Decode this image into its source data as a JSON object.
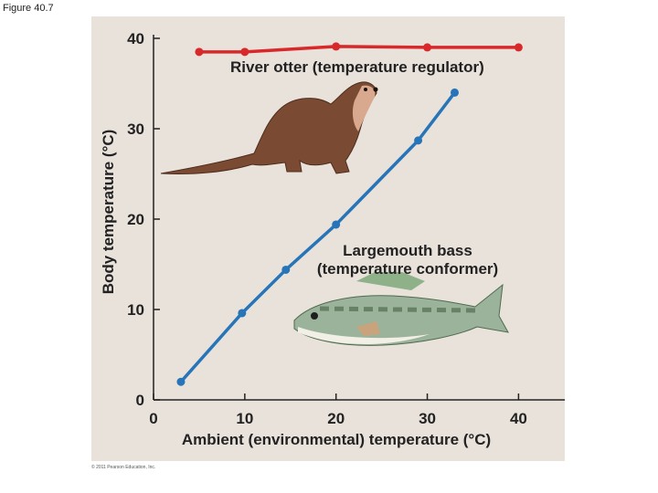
{
  "figure_label": "Figure 40.7",
  "copyright": "© 2011 Pearson Education, Inc.",
  "colors": {
    "background": "#e9e2db",
    "otter_series": "#d8282a",
    "bass_series": "#2775b8",
    "axis": "#222222"
  },
  "chart_data": {
    "type": "line",
    "title": "",
    "xlabel": "Ambient (environmental) temperature (°C)",
    "ylabel": "Body temperature (°C)",
    "xlim": [
      0,
      45
    ],
    "ylim": [
      0,
      40
    ],
    "xticks": [
      0,
      10,
      20,
      30,
      40
    ],
    "yticks": [
      0,
      10,
      20,
      30,
      40
    ],
    "grid": false,
    "series": [
      {
        "name": "River otter (temperature regulator)",
        "label_lines": [
          "River otter (temperature regulator)"
        ],
        "color": "#d8282a",
        "x": [
          5,
          10,
          20,
          30,
          40
        ],
        "y": [
          38.5,
          38.5,
          39.1,
          39.0,
          39.0
        ]
      },
      {
        "name": "Largemouth bass (temperature conformer)",
        "label_lines": [
          "Largemouth bass",
          "(temperature conformer)"
        ],
        "color": "#2775b8",
        "x": [
          3,
          9.7,
          14.5,
          20,
          29,
          33
        ],
        "y": [
          2,
          9.6,
          14.4,
          19.4,
          28.7,
          34
        ]
      }
    ]
  }
}
